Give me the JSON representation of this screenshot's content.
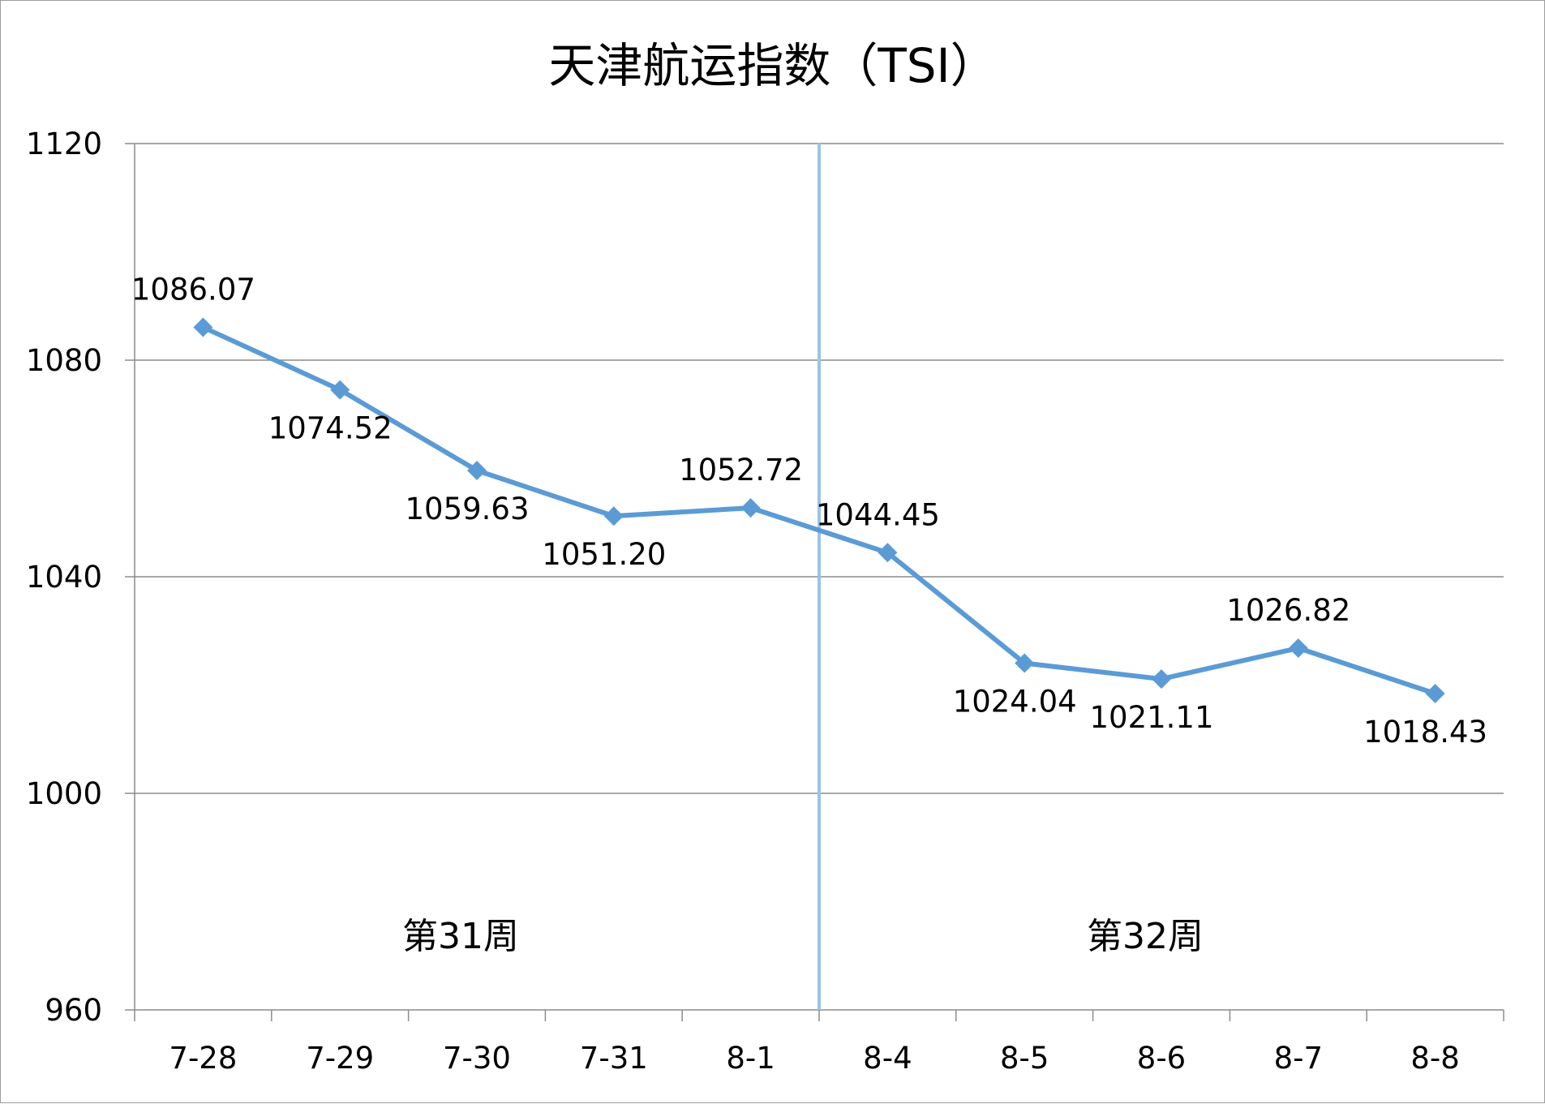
{
  "chart_data": {
    "type": "line",
    "title": "天津航运指数（TSI）",
    "xlabel": "",
    "ylabel": "",
    "categories": [
      "7-28",
      "7-29",
      "7-30",
      "7-31",
      "8-1",
      "8-4",
      "8-5",
      "8-6",
      "8-7",
      "8-8"
    ],
    "series": [
      {
        "values": [
          1086.07,
          1074.52,
          1059.63,
          1051.2,
          1052.72,
          1044.45,
          1024.04,
          1021.11,
          1026.82,
          1018.43
        ],
        "labels": [
          "1086.07",
          "1074.52",
          "1059.63",
          "1051.20",
          "1052.72",
          "1044.45",
          "1024.04",
          "1021.11",
          "1026.82",
          "1018.43"
        ],
        "label_side": [
          "above",
          "below",
          "below",
          "below",
          "above",
          "above",
          "below",
          "below",
          "above",
          "below"
        ],
        "color": "#5b9bd5",
        "marker": "diamond"
      }
    ],
    "ylim": [
      960,
      1120
    ],
    "yticks": [
      960,
      1000,
      1040,
      1080,
      1120
    ],
    "grid": "horizontal",
    "legend": "none",
    "divider": {
      "between": [
        "8-1",
        "8-4"
      ],
      "color": "#9dc3e6"
    },
    "annotations": [
      {
        "text": "第31周",
        "week_of": "7-30"
      },
      {
        "text": "第32周",
        "week_of": "8-6"
      }
    ]
  }
}
